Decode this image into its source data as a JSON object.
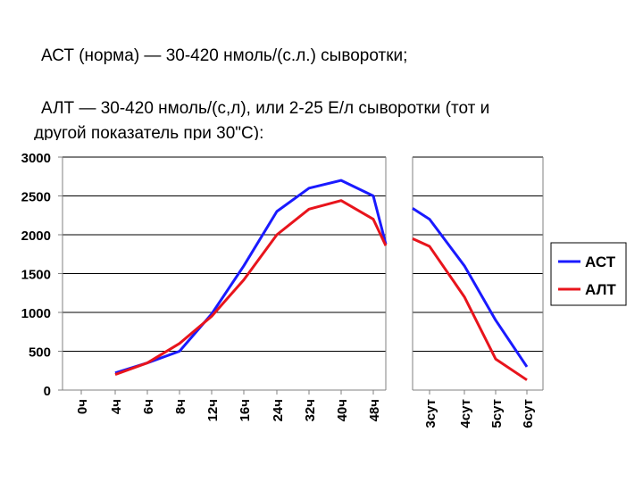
{
  "text": {
    "line1": "АСТ (норма) — 30-420 нмоль/(с.л.) сыворотки;",
    "line2": "АЛТ — 30-420 нмоль/(с,л), или 2-25 Е/л сыворотки (тот и",
    "line3": "другой показатель при 30\"С):"
  },
  "chart_data": {
    "type": "line",
    "y_ticks": [
      0,
      500,
      1000,
      1500,
      2000,
      2500,
      3000
    ],
    "ylim": [
      0,
      3000
    ],
    "grid": true,
    "legend_position": "right",
    "categories": [
      "0ч",
      "4ч",
      "6ч",
      "8ч",
      "12ч",
      "16ч",
      "24ч",
      "32ч",
      "40ч",
      "48ч",
      "3сут",
      "4сут",
      "5сут",
      "6сут"
    ],
    "break_after_category": "48ч",
    "series": [
      {
        "name": "АСТ",
        "color": "#1a1aff",
        "values": [
          null,
          220,
          350,
          500,
          980,
          1600,
          2300,
          2600,
          2700,
          2500,
          2200,
          1600,
          900,
          300
        ],
        "break_points": [
          1880,
          2340
        ]
      },
      {
        "name": "АЛТ",
        "color": "#e8141c",
        "values": [
          null,
          200,
          350,
          600,
          950,
          1420,
          2000,
          2330,
          2440,
          2200,
          1850,
          1200,
          400,
          130
        ],
        "break_points": [
          1860,
          1950
        ]
      }
    ]
  }
}
